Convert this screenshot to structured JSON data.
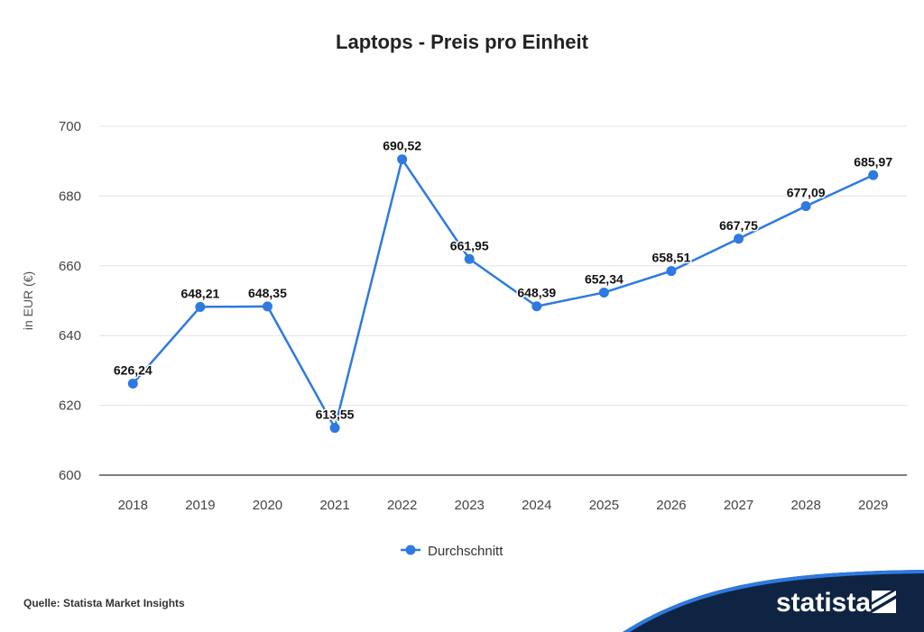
{
  "chart_data": {
    "type": "line",
    "title": "Laptops - Preis pro Einheit",
    "xlabel": "",
    "ylabel": "in EUR (€)",
    "categories": [
      "2018",
      "2019",
      "2020",
      "2021",
      "2022",
      "2023",
      "2024",
      "2025",
      "2026",
      "2027",
      "2028",
      "2029"
    ],
    "series": [
      {
        "name": "Durchschnitt",
        "values": [
          626.24,
          648.21,
          648.35,
          613.55,
          690.52,
          661.95,
          648.39,
          652.34,
          658.51,
          667.75,
          677.09,
          685.97
        ],
        "labels": [
          "626,24",
          "648,21",
          "648,35",
          "613,55",
          "690,52",
          "661,95",
          "648,39",
          "652,34",
          "658,51",
          "667,75",
          "677,09",
          "685,97"
        ],
        "color": "#2e7ae0"
      }
    ],
    "ylim": [
      600,
      700
    ],
    "yticks": [
      600,
      620,
      640,
      660,
      680,
      700
    ],
    "grid": true,
    "legend": "bottom-center"
  },
  "footer": {
    "source": "Quelle: Statista Market Insights",
    "brand": "statista"
  },
  "colors": {
    "line": "#2e7ae0",
    "footer_bg": "#0f2442",
    "footer_accent": "#2e7ae0",
    "grid": "#e3e3e3"
  }
}
